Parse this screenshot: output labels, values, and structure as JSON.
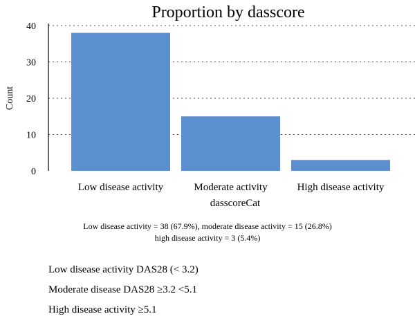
{
  "chart_data": {
    "type": "bar",
    "title": "Proportion by dasscore",
    "xlabel": "dasscoreCat",
    "ylabel": "Count",
    "categories": [
      "Low disease activity",
      "Moderate activity",
      "High disease activity"
    ],
    "values": [
      38,
      15,
      3
    ],
    "ylim": [
      0,
      40
    ],
    "yticks": [
      0,
      10,
      20,
      30,
      40
    ],
    "grid": true,
    "bar_color": "#5b8fcf"
  },
  "caption": {
    "line1": "Low disease activity = 38 (67.9%), moderate disease activity = 15 (26.8%)",
    "line2": "high disease activity = 3 (5.4%)"
  },
  "notes": [
    "Low disease activity DAS28 (< 3.2)",
    "Moderate disease DAS28 ≥3.2 <5.1",
    "High disease activity ≥5.1"
  ]
}
